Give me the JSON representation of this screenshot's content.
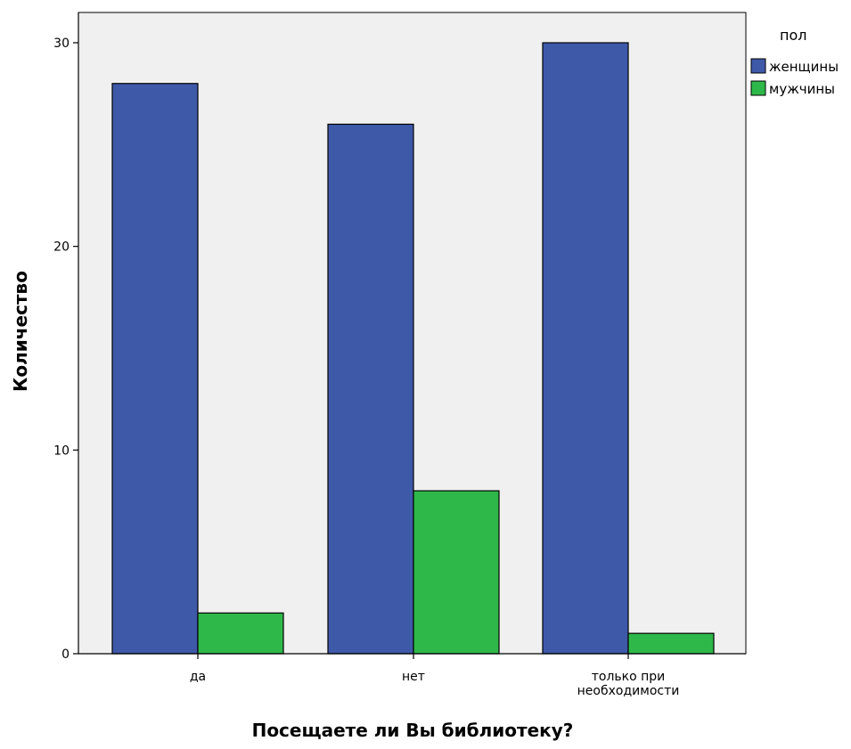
{
  "chart_data": {
    "type": "bar",
    "categories": [
      "да",
      "нет",
      "только при необходимости"
    ],
    "category_lines": [
      [
        "да"
      ],
      [
        "нет"
      ],
      [
        "только при",
        "необходимости"
      ]
    ],
    "series": [
      {
        "name": "женщины",
        "values": [
          28,
          26,
          30
        ],
        "color": "#3f59a9"
      },
      {
        "name": "мужчины",
        "values": [
          2,
          8,
          1
        ],
        "color": "#2fb84a"
      }
    ],
    "xlabel": "Посещаете ли Вы библиотеку?",
    "ylabel": "Количество",
    "ylim": [
      0,
      31.6
    ],
    "yticks": [
      0,
      10,
      20,
      30
    ],
    "legend_title": "пол",
    "legend_position": "top-right, outside plot",
    "plot_background": "#f0f0f0",
    "grid": false
  }
}
